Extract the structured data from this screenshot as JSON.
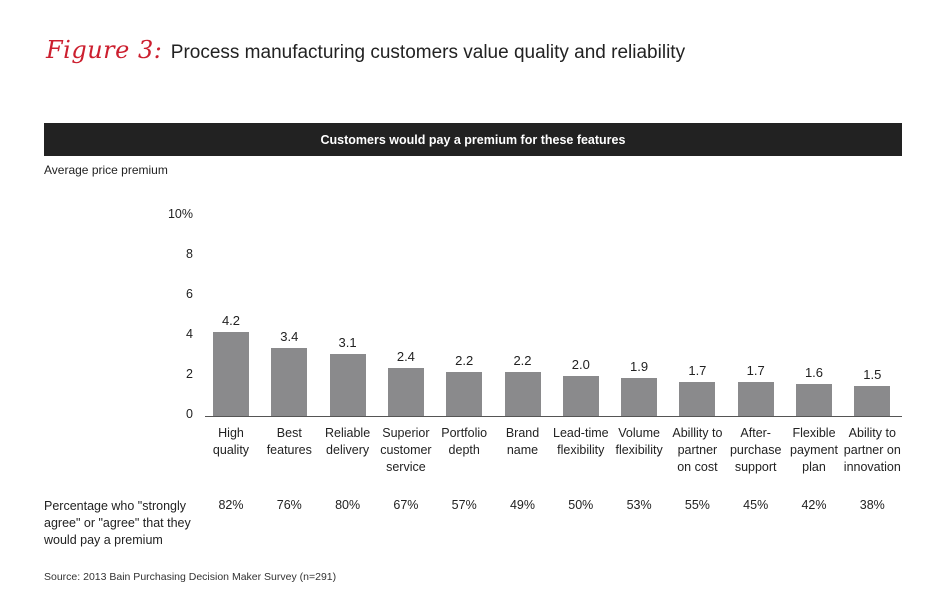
{
  "figure": {
    "label": "Figure 3:",
    "title": "Process manufacturing customers value quality and reliability"
  },
  "banner": "Customers would pay a premium for these features",
  "source": "Source: 2013 Bain Purchasing Decision Maker Survey (n=291)",
  "colors": {
    "bar": "#8a8a8c",
    "banner": "#222222",
    "accent": "#cc1f2f"
  },
  "chart_data": {
    "type": "bar",
    "title": "Customers would pay a premium for these features",
    "ylabel": "Average price premium",
    "xlabel": "",
    "ylim": [
      0,
      10
    ],
    "y_ticks": [
      "10%",
      "8",
      "6",
      "4",
      "2",
      "0"
    ],
    "categories": [
      "High\nquality",
      "Best\nfeatures",
      "Reliable\ndelivery",
      "Superior\ncustomer\nservice",
      "Portfolio\ndepth",
      "Brand\nname",
      "Lead-time\nflexibility",
      "Volume\nflexibility",
      "Abillity to\npartner\non cost",
      "After-\npurchase\nsupport",
      "Flexible\npayment\nplan",
      "Ability to\npartner on\ninnovation"
    ],
    "values": [
      4.2,
      3.4,
      3.1,
      2.4,
      2.2,
      2.2,
      2.0,
      1.9,
      1.7,
      1.7,
      1.6,
      1.5
    ],
    "value_labels": [
      "4.2",
      "3.4",
      "3.1",
      "2.4",
      "2.2",
      "2.2",
      "2.0",
      "1.9",
      "1.7",
      "1.7",
      "1.6",
      "1.5"
    ],
    "secondary_row": {
      "label": "Percentage who \"strongly agree\" or \"agree\" that they would pay a premium",
      "values": [
        "82%",
        "76%",
        "80%",
        "67%",
        "57%",
        "49%",
        "50%",
        "53%",
        "55%",
        "45%",
        "42%",
        "38%"
      ]
    },
    "grid": false
  }
}
